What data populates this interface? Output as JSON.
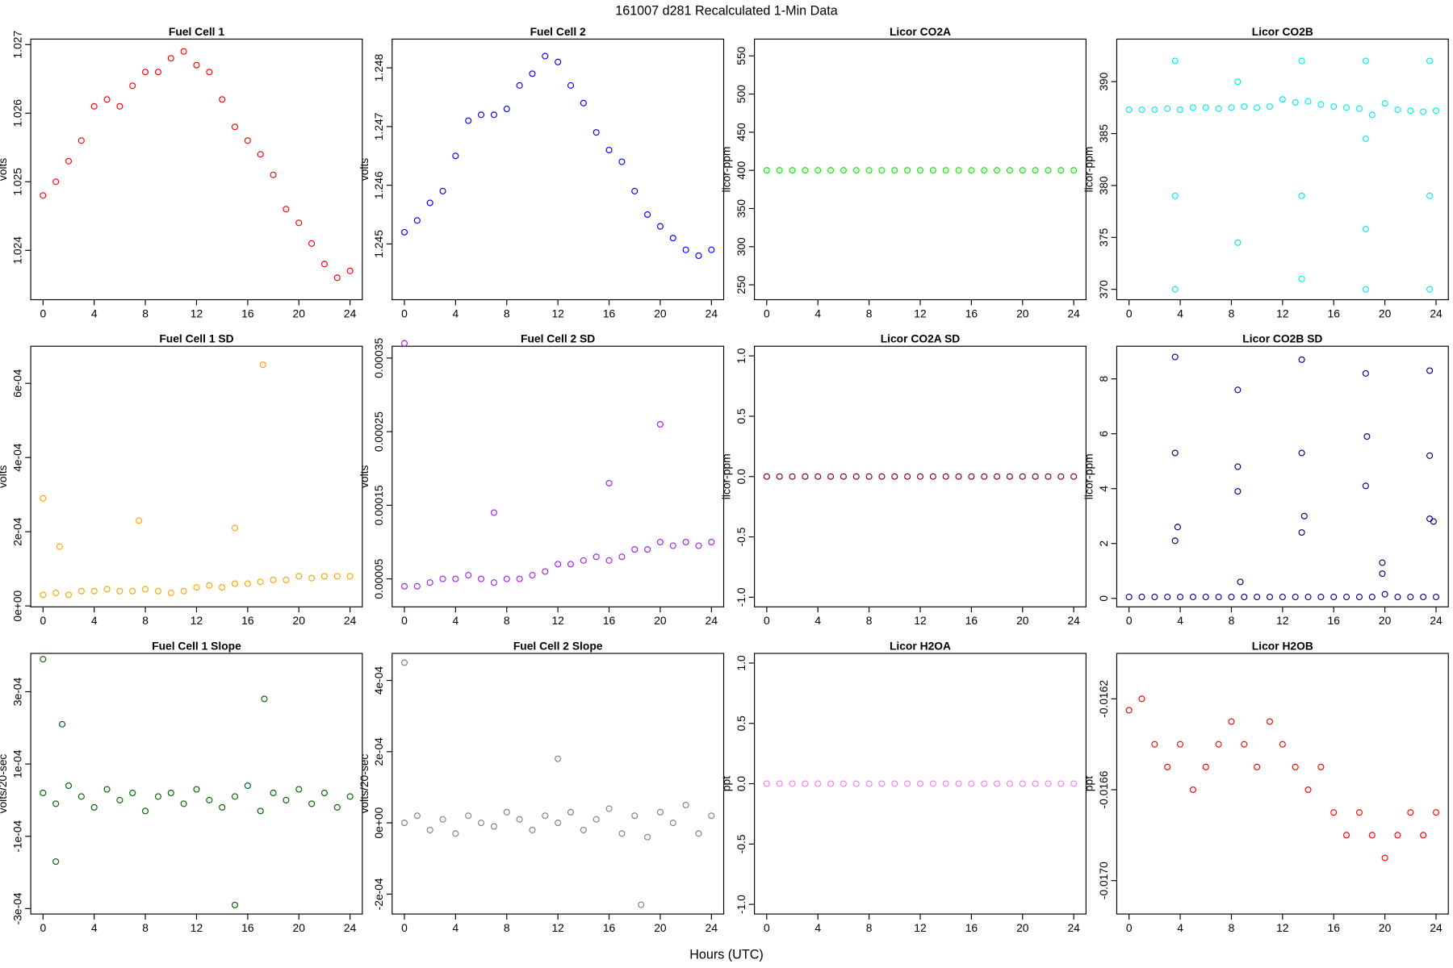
{
  "title": "161007   d281   Recalculated 1-Min Data",
  "xlabel": "Hours (UTC)",
  "chart_data": [
    {
      "type": "scatter",
      "title": "Fuel Cell 1",
      "ylabel": "volts",
      "color": "#ff0000",
      "x": [
        0,
        1,
        2,
        3,
        4,
        5,
        6,
        7,
        8,
        9,
        10,
        11,
        12,
        13,
        14,
        15,
        16,
        17,
        18,
        19,
        20,
        21,
        22,
        23,
        24
      ],
      "values": [
        1.0248,
        1.025,
        1.0253,
        1.0256,
        1.0261,
        1.0262,
        1.0261,
        1.0264,
        1.0266,
        1.0266,
        1.0268,
        1.0269,
        1.0267,
        1.0266,
        1.0262,
        1.0258,
        1.0256,
        1.0254,
        1.0251,
        1.0246,
        1.0244,
        1.0241,
        1.0238,
        1.0236,
        1.0237
      ],
      "xlim": [
        -0.96,
        24.96
      ],
      "xticks": [
        0,
        4,
        8,
        12,
        16,
        20,
        24
      ],
      "ylim": [
        1.02328,
        1.02708
      ],
      "yticks": [
        1.024,
        1.025,
        1.026,
        1.027
      ]
    },
    {
      "type": "scatter",
      "title": "Fuel Cell 2",
      "ylabel": "volts",
      "color": "#0000ff",
      "x": [
        0,
        1,
        2,
        3,
        4,
        5,
        6,
        7,
        8,
        9,
        10,
        11,
        12,
        13,
        14,
        15,
        16,
        17,
        18,
        19,
        20,
        21,
        22,
        23,
        24
      ],
      "values": [
        1.2452,
        1.2454,
        1.2457,
        1.2459,
        1.2465,
        1.2471,
        1.2472,
        1.2472,
        1.2473,
        1.2477,
        1.2479,
        1.2482,
        1.2481,
        1.2477,
        1.2474,
        1.2469,
        1.2466,
        1.2464,
        1.2459,
        1.2455,
        1.2453,
        1.2451,
        1.2449,
        1.2448,
        1.2449
      ],
      "xlim": [
        -0.96,
        24.96
      ],
      "xticks": [
        0,
        4,
        8,
        12,
        16,
        20,
        24
      ],
      "ylim": [
        1.24405,
        1.24849
      ],
      "yticks": [
        1.245,
        1.246,
        1.247,
        1.248
      ]
    },
    {
      "type": "scatter",
      "title": "Licor CO2A",
      "ylabel": "licor-ppm",
      "color": "#00ee00",
      "x": [
        0,
        1,
        2,
        3,
        4,
        5,
        6,
        7,
        8,
        9,
        10,
        11,
        12,
        13,
        14,
        15,
        16,
        17,
        18,
        19,
        20,
        21,
        22,
        23,
        24
      ],
      "values": [
        400,
        400,
        400,
        400,
        400,
        400,
        400,
        400,
        400,
        400,
        400,
        400,
        400,
        400,
        400,
        400,
        400,
        400,
        400,
        400,
        400,
        400,
        400,
        400,
        400
      ],
      "xlim": [
        -0.96,
        24.96
      ],
      "xticks": [
        0,
        4,
        8,
        12,
        16,
        20,
        24
      ],
      "ylim": [
        230.5,
        572
      ],
      "yticks": [
        250,
        300,
        350,
        400,
        450,
        500,
        550
      ]
    },
    {
      "type": "scatter",
      "title": "Licor CO2B",
      "ylabel": "licor-ppm",
      "color": "#00eeee",
      "x": [
        0,
        1,
        2,
        3,
        4,
        5,
        6,
        7,
        8,
        9,
        10,
        11,
        12,
        13,
        14,
        15,
        16,
        17,
        18,
        19,
        20,
        21,
        22,
        23,
        24,
        3.6,
        3.6,
        3.6,
        8.5,
        8.5,
        13.5,
        13.5,
        13.5,
        18.5,
        18.5,
        18.5,
        18.5,
        23.5,
        23.5,
        23.5
      ],
      "values": [
        387.3,
        387.3,
        387.3,
        387.4,
        387.3,
        387.5,
        387.5,
        387.4,
        387.5,
        387.6,
        387.5,
        387.6,
        388.3,
        388,
        388.1,
        387.8,
        387.6,
        387.5,
        387.4,
        386.8,
        387.9,
        387.3,
        387.2,
        387.1,
        387.2,
        392,
        379,
        370,
        390,
        374.5,
        392,
        379,
        371,
        392,
        384.5,
        375.8,
        370,
        392,
        379,
        370
      ],
      "xlim": [
        -0.96,
        24.96
      ],
      "xticks": [
        0,
        4,
        8,
        12,
        16,
        20,
        24
      ],
      "ylim": [
        369,
        394.1
      ],
      "yticks": [
        370,
        375,
        380,
        385,
        390
      ]
    },
    {
      "type": "scatter",
      "title": "Fuel Cell 1 SD",
      "ylabel": "volts",
      "color": "#ffa500",
      "x": [
        0,
        1,
        2,
        3,
        4,
        5,
        6,
        7,
        8,
        9,
        10,
        11,
        12,
        13,
        14,
        15,
        16,
        17,
        18,
        19,
        20,
        21,
        22,
        23,
        24,
        0,
        1.3,
        7.5,
        15,
        17.2
      ],
      "values": [
        3e-05,
        3.5e-05,
        3e-05,
        4e-05,
        4e-05,
        4.5e-05,
        4e-05,
        4e-05,
        4.5e-05,
        4e-05,
        3.5e-05,
        4e-05,
        5e-05,
        5.5e-05,
        5e-05,
        6e-05,
        6e-05,
        6.5e-05,
        7e-05,
        7e-05,
        8e-05,
        7.5e-05,
        8e-05,
        8e-05,
        8e-05,
        0.00029,
        0.00016,
        0.00023,
        0.00021,
        0.00065
      ],
      "xlim": [
        -0.96,
        24.96
      ],
      "xticks": [
        0,
        4,
        8,
        12,
        16,
        20,
        24
      ],
      "ylim": [
        -2.5e-06,
        0.0007
      ],
      "yticks": [
        {
          "value": 0,
          "label": "0e+00"
        },
        {
          "value": 0.0002,
          "label": "2e-04"
        },
        {
          "value": 0.0004,
          "label": "4e-04"
        },
        {
          "value": 0.0006,
          "label": "6e-04"
        }
      ]
    },
    {
      "type": "scatter",
      "title": "Fuel Cell 2 SD",
      "ylabel": "volts",
      "color": "#a020f0",
      "x": [
        0,
        1,
        2,
        3,
        4,
        5,
        6,
        7,
        8,
        9,
        10,
        11,
        12,
        13,
        14,
        15,
        16,
        17,
        18,
        19,
        20,
        21,
        22,
        23,
        24,
        0,
        7,
        16,
        20
      ],
      "values": [
        4e-05,
        4e-05,
        4.5e-05,
        5e-05,
        5e-05,
        5.5e-05,
        5e-05,
        4.5e-05,
        5e-05,
        5e-05,
        5.5e-05,
        6e-05,
        7e-05,
        7e-05,
        7.5e-05,
        8e-05,
        7.5e-05,
        8e-05,
        9e-05,
        9e-05,
        0.0001,
        9.5e-05,
        0.0001,
        9.5e-05,
        0.0001,
        0.00037,
        0.00014,
        0.00018,
        0.00026
      ],
      "xlim": [
        -0.96,
        24.96
      ],
      "xticks": [
        0,
        4,
        8,
        12,
        16,
        20,
        24
      ],
      "ylim": [
        1.2e-05,
        0.000366
      ],
      "yticks": [
        5e-05,
        0.00015,
        0.00025,
        0.00035
      ]
    },
    {
      "type": "scatter",
      "title": "Licor CO2A SD",
      "ylabel": "licor-ppm",
      "color": "#8b0000",
      "x": [
        0,
        1,
        2,
        3,
        4,
        5,
        6,
        7,
        8,
        9,
        10,
        11,
        12,
        13,
        14,
        15,
        16,
        17,
        18,
        19,
        20,
        21,
        22,
        23,
        24
      ],
      "values": [
        0,
        0,
        0,
        0,
        0,
        0,
        0,
        0,
        0,
        0,
        0,
        0,
        0,
        0,
        0,
        0,
        0,
        0,
        0,
        0,
        0,
        0,
        0,
        0,
        0
      ],
      "xlim": [
        -0.96,
        24.96
      ],
      "xticks": [
        0,
        4,
        8,
        12,
        16,
        20,
        24
      ],
      "ylim": [
        -1.08,
        1.08
      ],
      "yticks": [
        {
          "value": -1,
          "label": "-1.0"
        },
        -0.5,
        {
          "value": 0,
          "label": "0.0"
        },
        0.5,
        {
          "value": 1,
          "label": "1.0"
        }
      ]
    },
    {
      "type": "scatter",
      "title": "Licor CO2B SD",
      "ylabel": "licor-ppm",
      "color": "#000080",
      "x": [
        0,
        1,
        2,
        3,
        4,
        5,
        6,
        7,
        8,
        9,
        10,
        11,
        12,
        13,
        14,
        15,
        16,
        17,
        18,
        19,
        20,
        21,
        22,
        23,
        24,
        3.6,
        3.6,
        3.6,
        3.8,
        8.5,
        8.5,
        8.5,
        8.7,
        13.5,
        13.5,
        13.5,
        13.7,
        18.5,
        18.6,
        18.5,
        19.8,
        19.8,
        23.5,
        23.5,
        23.5,
        23.8
      ],
      "values": [
        0.05,
        0.05,
        0.05,
        0.05,
        0.05,
        0.05,
        0.05,
        0.05,
        0.05,
        0.05,
        0.05,
        0.05,
        0.05,
        0.05,
        0.05,
        0.05,
        0.05,
        0.05,
        0.05,
        0.05,
        0.15,
        0.05,
        0.05,
        0.05,
        0.05,
        8.8,
        5.3,
        2.1,
        2.6,
        7.6,
        4.8,
        3.9,
        0.6,
        8.7,
        5.3,
        2.4,
        3,
        8.2,
        5.9,
        4.1,
        1.3,
        0.9,
        8.3,
        5.2,
        2.9,
        2.8
      ],
      "xlim": [
        -0.96,
        24.96
      ],
      "xticks": [
        0,
        4,
        8,
        12,
        16,
        20,
        24
      ],
      "ylim": [
        -0.31,
        9.19
      ],
      "yticks": [
        0,
        2,
        4,
        6,
        8
      ]
    },
    {
      "type": "scatter",
      "title": "Fuel Cell 1 Slope",
      "ylabel": "volts/20-sec",
      "color": "#006400",
      "x": [
        0,
        1,
        2,
        3,
        4,
        5,
        6,
        7,
        8,
        9,
        10,
        11,
        12,
        13,
        14,
        15,
        16,
        17,
        18,
        19,
        20,
        21,
        22,
        23,
        24,
        0,
        1,
        1.5,
        15,
        17.3
      ],
      "values": [
        2e-05,
        -1e-05,
        4e-05,
        1e-05,
        -2e-05,
        3e-05,
        0,
        2e-05,
        -3e-05,
        1e-05,
        2e-05,
        -1e-05,
        3e-05,
        0,
        -2e-05,
        1e-05,
        4e-05,
        -3e-05,
        2e-05,
        0,
        3e-05,
        -1e-05,
        2e-05,
        -2e-05,
        1e-05,
        0.00039,
        -0.00017,
        0.00021,
        -0.00029,
        0.00028
      ],
      "xlim": [
        -0.96,
        24.96
      ],
      "xticks": [
        0,
        4,
        8,
        12,
        16,
        20,
        24
      ],
      "ylim": [
        -0.000315,
        0.000406
      ],
      "yticks": [
        {
          "value": -0.0003,
          "label": "-3e-04"
        },
        {
          "value": -0.0001,
          "label": "-1e-04"
        },
        {
          "value": 0.0001,
          "label": "1e-04"
        },
        {
          "value": 0.0003,
          "label": "3e-04"
        }
      ]
    },
    {
      "type": "scatter",
      "title": "Fuel Cell 2 Slope",
      "ylabel": "volts/20-sec",
      "color": "#808080",
      "x": [
        0,
        1,
        2,
        3,
        4,
        5,
        6,
        7,
        8,
        9,
        10,
        11,
        12,
        13,
        14,
        15,
        16,
        17,
        18,
        19,
        20,
        21,
        22,
        23,
        24,
        0,
        12,
        18.5
      ],
      "values": [
        0,
        2e-05,
        -2e-05,
        1e-05,
        -3e-05,
        2e-05,
        0,
        -1e-05,
        3e-05,
        1e-05,
        -2e-05,
        2e-05,
        0,
        3e-05,
        -2e-05,
        1e-05,
        4e-05,
        -3e-05,
        2e-05,
        -4e-05,
        3e-05,
        0,
        5e-05,
        -3e-05,
        2e-05,
        0.00045,
        0.00018,
        -0.00023
      ],
      "xlim": [
        -0.96,
        24.96
      ],
      "xticks": [
        0,
        4,
        8,
        12,
        16,
        20,
        24
      ],
      "ylim": [
        -0.000256,
        0.000476
      ],
      "yticks": [
        {
          "value": -0.0002,
          "label": "-2e-04"
        },
        {
          "value": 0,
          "label": "0e+00"
        },
        {
          "value": 0.0002,
          "label": "2e-04"
        },
        {
          "value": 0.0004,
          "label": "4e-04"
        }
      ]
    },
    {
      "type": "scatter",
      "title": "Licor H2OA",
      "ylabel": "ppt",
      "color": "#ee82ee",
      "x": [
        0,
        1,
        2,
        3,
        4,
        5,
        6,
        7,
        8,
        9,
        10,
        11,
        12,
        13,
        14,
        15,
        16,
        17,
        18,
        19,
        20,
        21,
        22,
        23,
        24
      ],
      "values": [
        0,
        0,
        0,
        0,
        0,
        0,
        0,
        0,
        0,
        0,
        0,
        0,
        0,
        0,
        0,
        0,
        0,
        0,
        0,
        0,
        0,
        0,
        0,
        0,
        0
      ],
      "xlim": [
        -0.96,
        24.96
      ],
      "xticks": [
        0,
        4,
        8,
        12,
        16,
        20,
        24
      ],
      "ylim": [
        -1.08,
        1.08
      ],
      "yticks": [
        {
          "value": -1,
          "label": "-1.0"
        },
        -0.5,
        {
          "value": 0,
          "label": "0.0"
        },
        0.5,
        {
          "value": 1,
          "label": "1.0"
        }
      ]
    },
    {
      "type": "scatter",
      "title": "Licor H2OB",
      "ylabel": "ppt",
      "color": "#ff0000",
      "x": [
        0,
        1,
        2,
        3,
        4,
        5,
        6,
        7,
        8,
        9,
        10,
        11,
        12,
        13,
        14,
        15,
        16,
        17,
        18,
        19,
        20,
        21,
        22,
        23,
        24
      ],
      "values": [
        -0.01625,
        -0.0162,
        -0.0164,
        -0.0165,
        -0.0164,
        -0.0166,
        -0.0165,
        -0.0164,
        -0.0163,
        -0.0164,
        -0.0165,
        -0.0163,
        -0.0164,
        -0.0165,
        -0.0166,
        -0.0165,
        -0.0167,
        -0.0168,
        -0.0167,
        -0.0168,
        -0.0169,
        -0.0168,
        -0.0167,
        -0.0168,
        -0.0167
      ],
      "xlim": [
        -0.96,
        24.96
      ],
      "xticks": [
        0,
        4,
        8,
        12,
        16,
        20,
        24
      ],
      "ylim": [
        -0.017147,
        -0.016
      ],
      "yticks": [
        {
          "value": -0.017,
          "label": "-0.0170"
        },
        -0.0166,
        -0.0162
      ]
    }
  ]
}
